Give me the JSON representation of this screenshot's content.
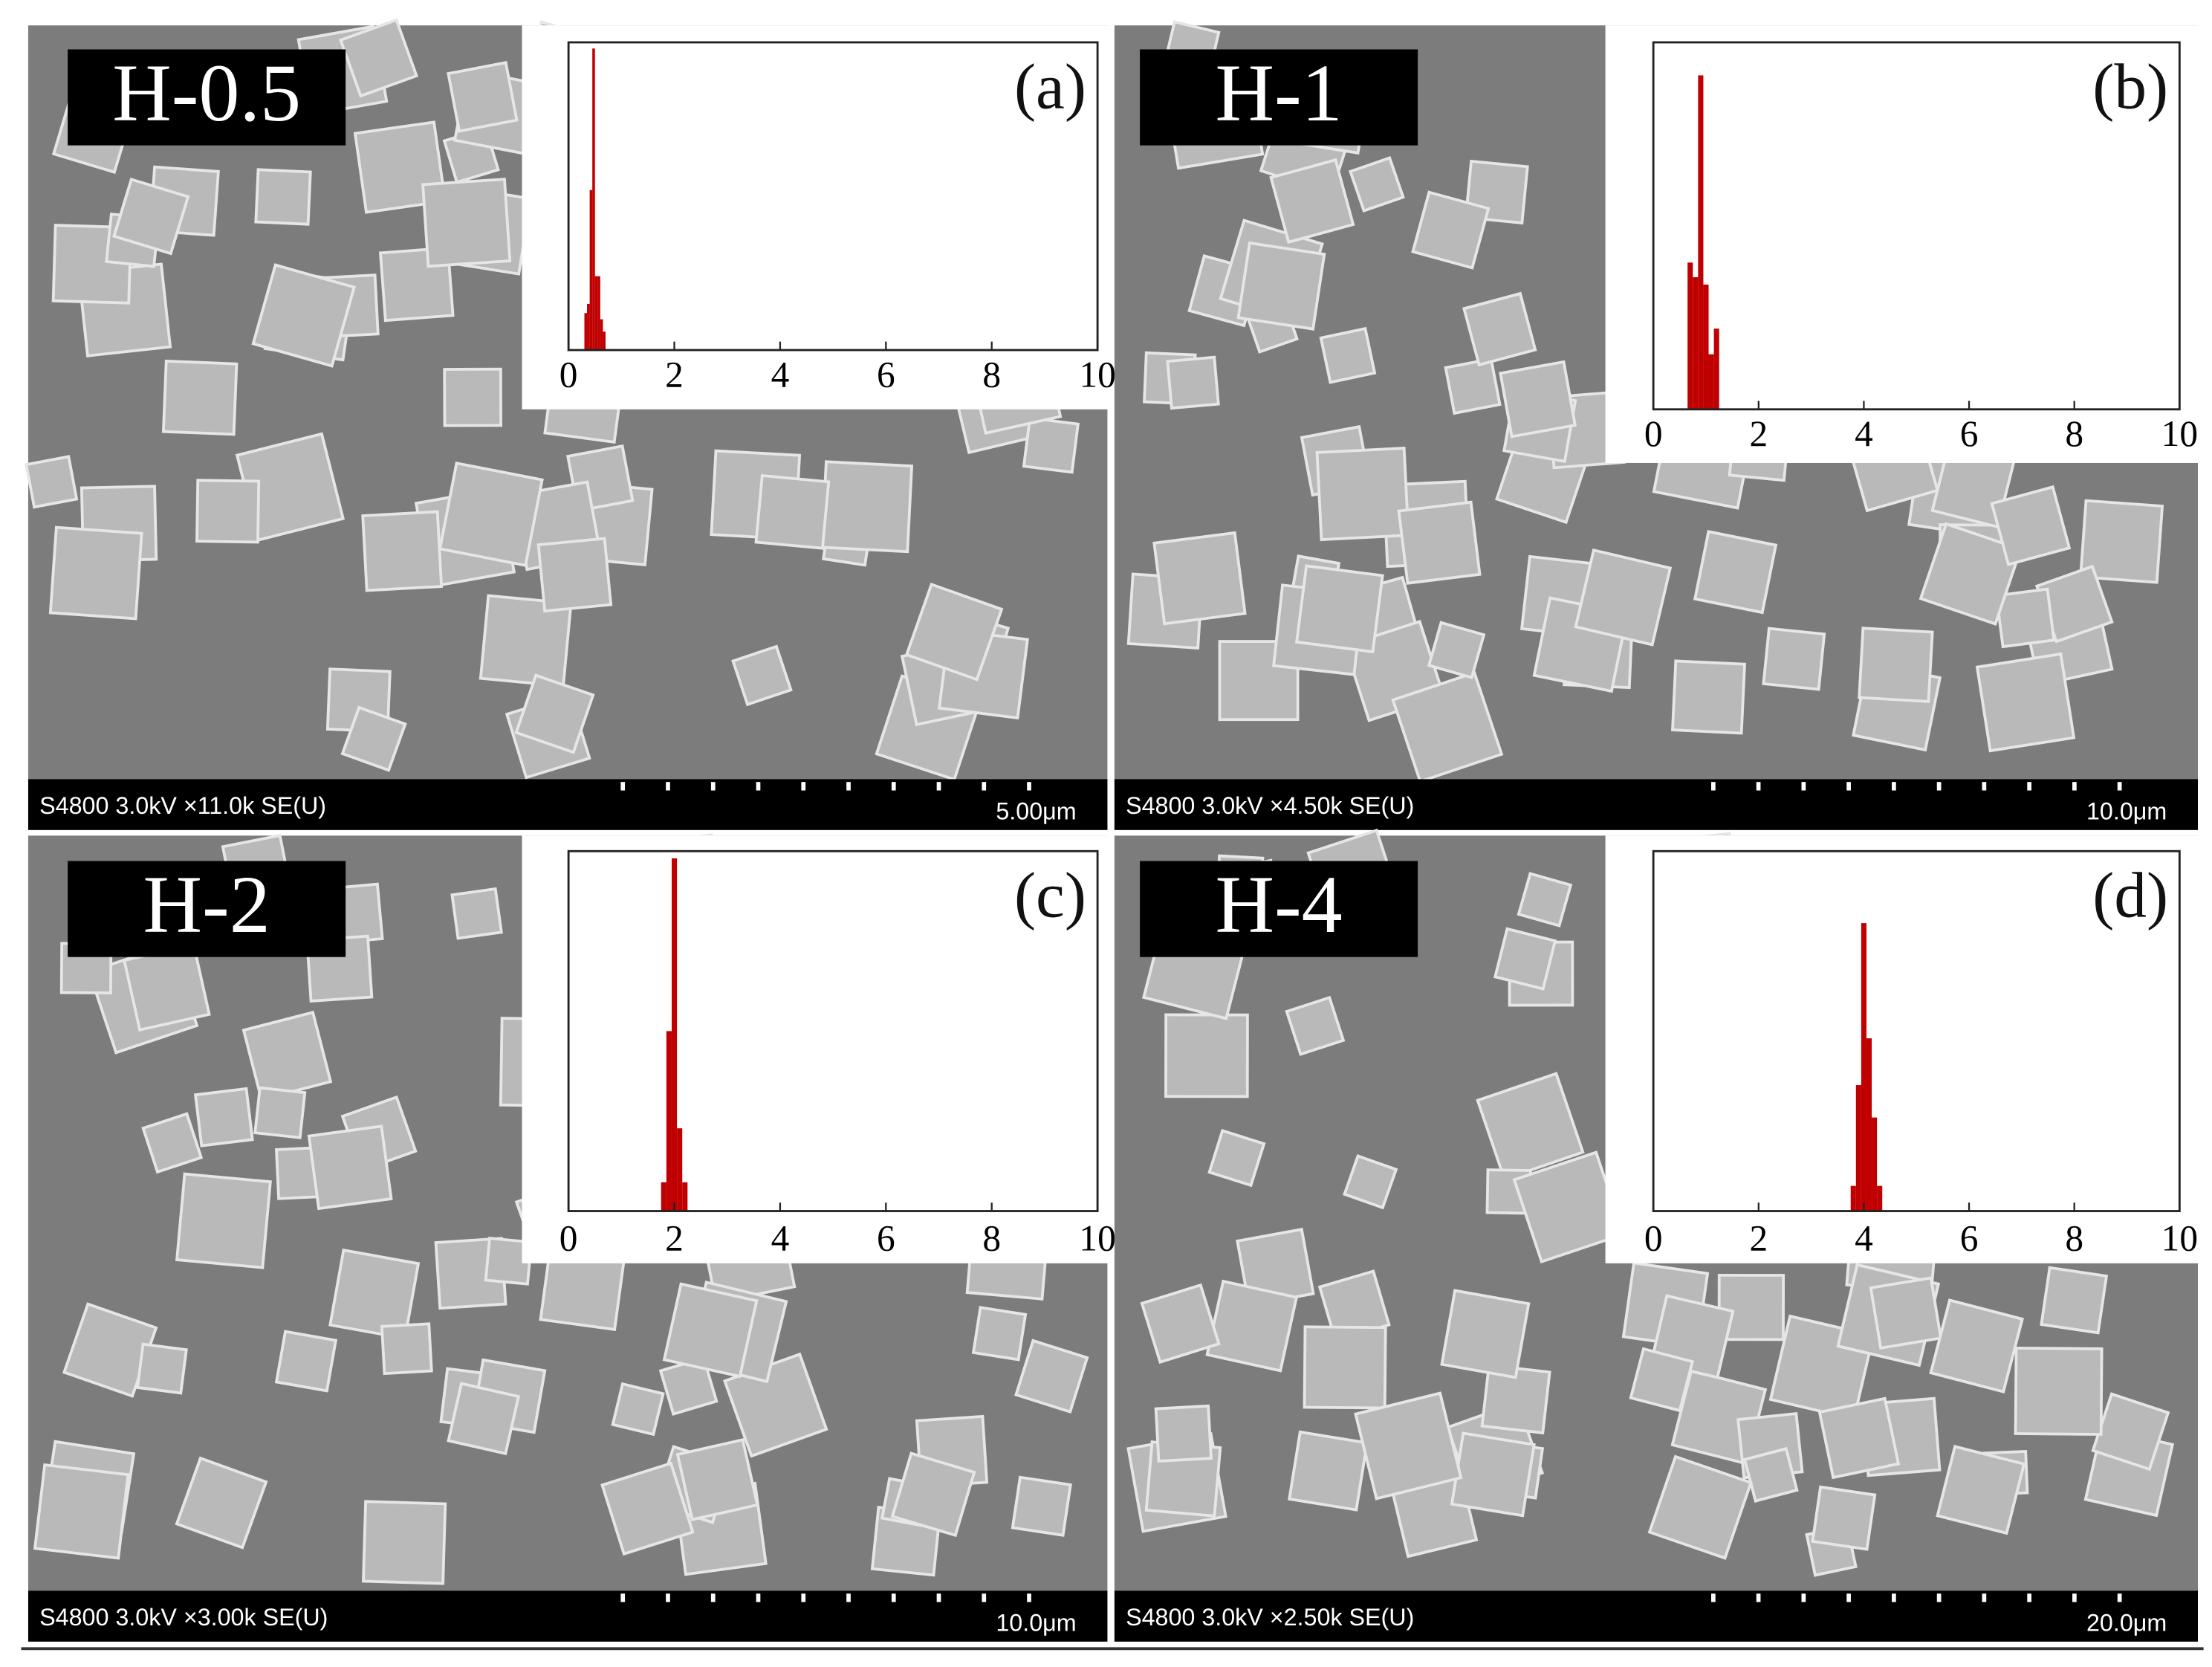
{
  "chart_data": [
    {
      "type": "histogram",
      "sample_label": "H-0.5",
      "panel_label": "(a)",
      "info_text": "S4800 3.0kV ×11.0k SE(U)",
      "scale_text": "5.00μm",
      "bins": [
        0.3,
        0.35,
        0.4,
        0.45,
        0.5,
        0.55,
        0.6,
        0.65,
        0.7
      ],
      "values": [
        12,
        15,
        52,
        98,
        24,
        24,
        10,
        6
      ],
      "color": "#c00000",
      "xlim": [
        0,
        10
      ],
      "xticks": [
        0,
        2,
        4,
        6,
        8,
        10
      ],
      "ylim": [
        0,
        100
      ]
    },
    {
      "type": "histogram",
      "sample_label": "H-1",
      "panel_label": "(b)",
      "info_text": "S4800 3.0kV ×4.50k SE(U)",
      "scale_text": "10.0μm",
      "bins": [
        0.65,
        0.75,
        0.85,
        0.95,
        1.05,
        1.15,
        1.25
      ],
      "values": [
        40,
        36,
        91,
        34,
        15,
        22
      ],
      "color": "#c00000",
      "xlim": [
        0,
        10
      ],
      "xticks": [
        0,
        2,
        4,
        6,
        8,
        10
      ],
      "ylim": [
        0,
        100
      ]
    },
    {
      "type": "histogram",
      "sample_label": "H-2",
      "panel_label": "(c)",
      "info_text": "S4800 3.0kV ×3.00k SE(U)",
      "scale_text": "10.0μm",
      "bins": [
        1.75,
        1.85,
        1.95,
        2.05,
        2.15,
        2.25
      ],
      "values": [
        8,
        50,
        98,
        23,
        8
      ],
      "color": "#c00000",
      "xlim": [
        0,
        10
      ],
      "xticks": [
        0,
        2,
        4,
        6,
        8,
        10
      ],
      "ylim": [
        0,
        100
      ]
    },
    {
      "type": "histogram",
      "sample_label": "H-4",
      "panel_label": "(d)",
      "info_text": "S4800 3.0kV ×2.50k SE(U)",
      "scale_text": "20.0μm",
      "bins": [
        3.75,
        3.85,
        3.95,
        4.05,
        4.15,
        4.25,
        4.35
      ],
      "values": [
        7,
        35,
        80,
        48,
        26,
        7
      ],
      "color": "#c00000",
      "xlim": [
        0,
        10
      ],
      "xticks": [
        0,
        2,
        4,
        6,
        8,
        10
      ],
      "ylim": [
        0,
        100
      ]
    }
  ]
}
